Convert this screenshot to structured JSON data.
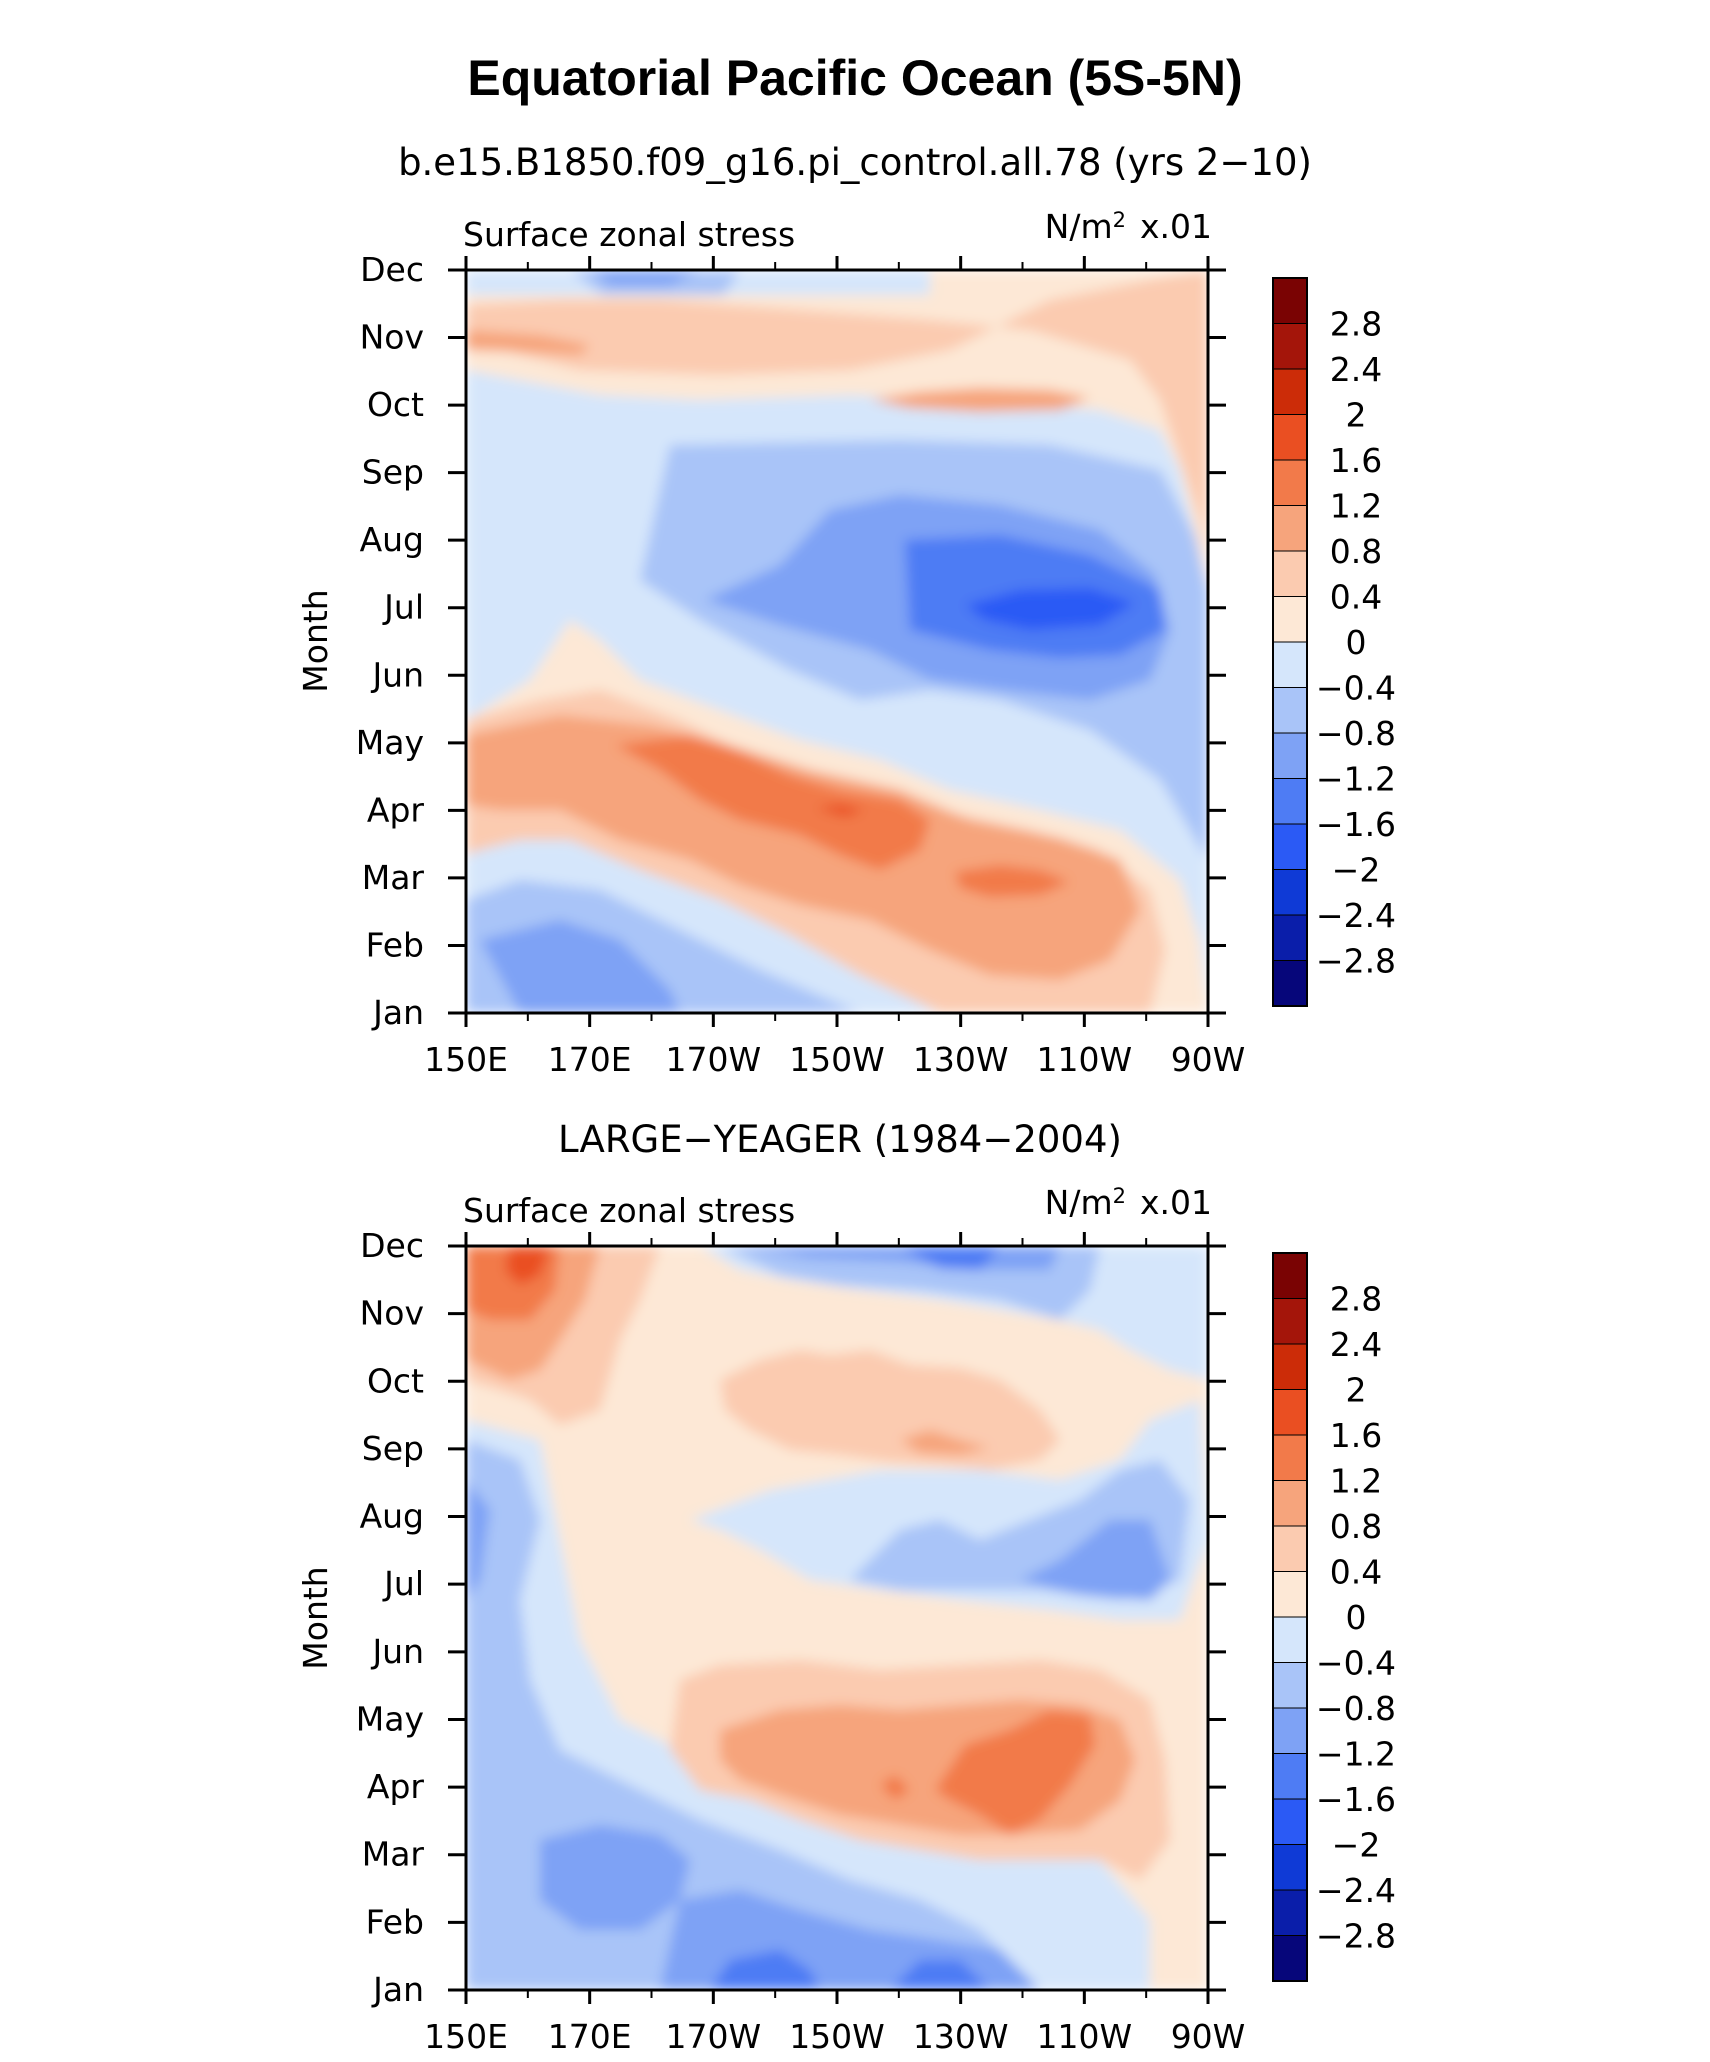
{
  "figure": {
    "title": "Equatorial Pacific Ocean (5S-5N)",
    "field_label": "Surface zonal stress",
    "units_base": "N/m",
    "units_sup": "2",
    "units_scale": "x.01",
    "ylabel": "Month"
  },
  "chart_data": [
    {
      "type": "heatmap",
      "title": "b.e15.B1850.f09_g16.pi_control.all.78 (yrs 2−10)",
      "xlabel": "",
      "ylabel": "Month",
      "x_ticks": [
        "150E",
        "170E",
        "170W",
        "150W",
        "130W",
        "110W",
        "90W"
      ],
      "y_ticks": [
        "Jan",
        "Feb",
        "Mar",
        "Apr",
        "May",
        "Jun",
        "Jul",
        "Aug",
        "Sep",
        "Oct",
        "Nov",
        "Dec"
      ],
      "xlim": [
        "150E",
        "90W"
      ],
      "ylim": [
        "Jan",
        "Dec"
      ],
      "features": [
        {
          "kind": "minimum",
          "lon": "115W",
          "month": "Jul",
          "value": -2.2
        },
        {
          "kind": "maximum",
          "lon": "150W",
          "month": "Apr",
          "value": 1.8
        },
        {
          "kind": "maximum",
          "lon": "125W",
          "month": "Mar",
          "value": 1.4
        },
        {
          "kind": "maximum",
          "lon": "120W",
          "month": "Oct",
          "value": 1.0
        },
        {
          "kind": "maximum",
          "lon": "165E",
          "month": "Nov",
          "value": 1.0
        },
        {
          "kind": "minimum",
          "lon": "160E",
          "month": "Jan",
          "value": -1.0
        }
      ]
    },
    {
      "type": "heatmap",
      "title": "LARGE−YEAGER (1984−2004)",
      "xlabel": "",
      "ylabel": "Month",
      "x_ticks": [
        "150E",
        "170E",
        "170W",
        "150W",
        "130W",
        "110W",
        "90W"
      ],
      "y_ticks": [
        "Jan",
        "Feb",
        "Mar",
        "Apr",
        "May",
        "Jun",
        "Jul",
        "Aug",
        "Sep",
        "Oct",
        "Nov",
        "Dec"
      ],
      "xlim": [
        "150E",
        "90W"
      ],
      "ylim": [
        "Jan",
        "Dec"
      ],
      "features": [
        {
          "kind": "maximum",
          "lon": "160E",
          "month": "Dec",
          "value": 2.0
        },
        {
          "kind": "maximum",
          "lon": "130W",
          "month": "Apr",
          "value": 1.4
        },
        {
          "kind": "maximum",
          "lon": "130W",
          "month": "Sep",
          "value": 0.8
        },
        {
          "kind": "minimum",
          "lon": "160W",
          "month": "Jan",
          "value": -1.8
        },
        {
          "kind": "minimum",
          "lon": "130W",
          "month": "Dec",
          "value": -1.6
        },
        {
          "kind": "minimum",
          "lon": "110W",
          "month": "Jul",
          "value": -1.0
        }
      ]
    }
  ],
  "colorbar": {
    "levels": [
      -2.8,
      -2.4,
      -2.0,
      -1.6,
      -1.2,
      -0.8,
      -0.4,
      0,
      0.4,
      0.8,
      1.2,
      1.6,
      2.0,
      2.4,
      2.8
    ],
    "labels": [
      "−2.8",
      "−2.4",
      "−2",
      "−1.6",
      "−1.2",
      "−0.8",
      "−0.4",
      "0",
      "0.4",
      "0.8",
      "1.2",
      "1.6",
      "2",
      "2.4",
      "2.8"
    ],
    "colors": [
      "#06067a",
      "#0a1eaa",
      "#0f3ad6",
      "#2b5af5",
      "#4e7cf4",
      "#7ea2f5",
      "#a9c4f8",
      "#d5e6fb",
      "#fde8d6",
      "#fbcbb0",
      "#f6a47c",
      "#f27a4a",
      "#ea4f22",
      "#cc2c08",
      "#a4150a",
      "#7a0303"
    ]
  }
}
